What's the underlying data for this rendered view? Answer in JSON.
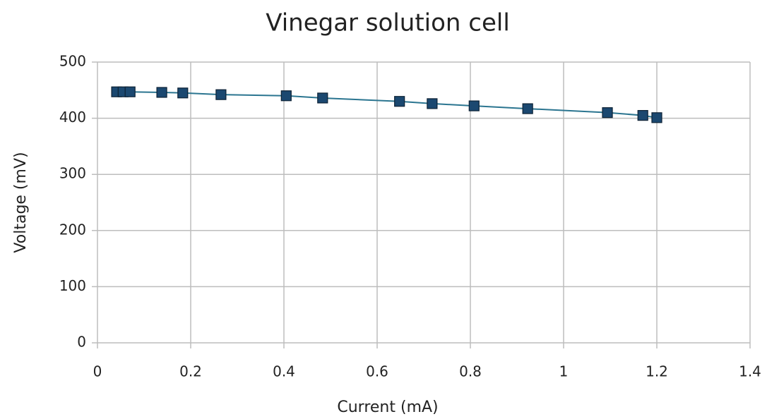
{
  "chart_data": {
    "type": "scatter",
    "title": "Vinegar solution cell",
    "x_label": "Current (mA)",
    "y_label": "Voltage (mV)",
    "series": [
      {
        "name": "Vinegar solution cell",
        "color": "#1b4870",
        "line_color": "#2b7590",
        "x": [
          0.041,
          0.055,
          0.07,
          0.138,
          0.183,
          0.265,
          0.405,
          0.483,
          0.648,
          0.718,
          0.808,
          0.923,
          1.094,
          1.17,
          1.2
        ],
        "values": [
          447,
          447,
          447,
          446,
          445,
          442,
          440,
          436,
          430,
          426,
          422,
          417,
          410,
          405,
          401
        ]
      }
    ],
    "line": true,
    "xlim": [
      0,
      1.4
    ],
    "xticks": [
      0,
      0.2,
      0.4,
      0.6,
      0.8,
      1,
      1.2,
      1.4
    ],
    "ylim": [
      0,
      500
    ],
    "yticks": [
      0,
      100,
      200,
      300,
      400,
      500
    ],
    "grid": true
  }
}
